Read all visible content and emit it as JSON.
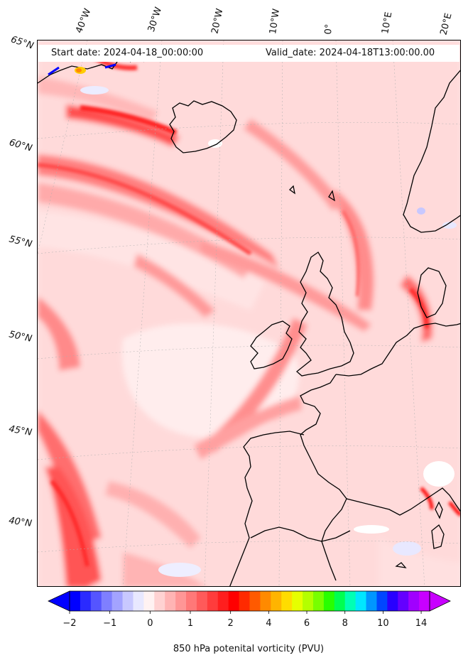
{
  "header": {
    "start_date": "Start date: 2024-04-18_00:00:00",
    "valid_date": "Valid_date: 2024-04-18T13:00:00.00"
  },
  "lon_labels": [
    "40°W",
    "30°W",
    "20°W",
    "10°W",
    "0°",
    "10°E",
    "20°E"
  ],
  "lat_labels": [
    "65°N",
    "60°N",
    "55°N",
    "50°N",
    "45°N",
    "40°N"
  ],
  "colorbar": {
    "label": "850 hPa potenital vorticity (PVU)",
    "ticks": [
      "−2",
      "−1",
      "0",
      "1",
      "2",
      "4",
      "6",
      "8",
      "10",
      "14"
    ],
    "colors": [
      "#0000ff",
      "#2a2aff",
      "#5555ff",
      "#7f7fff",
      "#a3a3ff",
      "#c8c8ff",
      "#e8e8ff",
      "#fff2f2",
      "#ffd2d2",
      "#ffb4b4",
      "#ff9696",
      "#ff7878",
      "#ff5a5a",
      "#ff3c3c",
      "#ff1e1e",
      "#ff0000",
      "#ff2a00",
      "#ff5a00",
      "#ff8a00",
      "#ffb400",
      "#ffdc00",
      "#e6ff00",
      "#b4ff00",
      "#78ff00",
      "#28ff00",
      "#00ff50",
      "#00ffb4",
      "#00e6ff",
      "#0096ff",
      "#0046ff",
      "#2800ff",
      "#6400ff",
      "#a000ff",
      "#c800ff"
    ]
  },
  "map": {
    "variable": "850 hPa potential vorticity",
    "background_color": "#ffe9e9",
    "land_outline_color": "#000000"
  }
}
